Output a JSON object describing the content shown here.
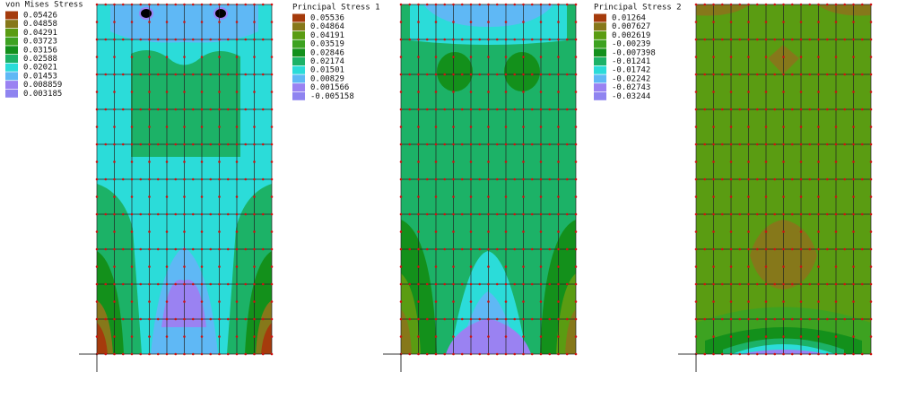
{
  "panels": [
    {
      "legend": {
        "title": "von Mises Stress",
        "items": [
          "0.05426",
          "0.04858",
          "0.04291",
          "0.03723",
          "0.03156",
          "0.02588",
          "0.02021",
          "0.01453",
          "0.008859",
          "0.003185"
        ]
      }
    },
    {
      "legend": {
        "title": "Principal Stress 1",
        "items": [
          "0.05536",
          "0.04864",
          "0.04191",
          "0.03519",
          "0.02846",
          "0.02174",
          "0.01501",
          "0.00829",
          "0.001566",
          "-0.005158"
        ]
      }
    },
    {
      "legend": {
        "title": "Principal Stress 2",
        "items": [
          "0.01264",
          "0.007627",
          "0.002619",
          "-0.00239",
          "-0.007398",
          "-0.01241",
          "-0.01742",
          "-0.02242",
          "-0.02743",
          "-0.03244"
        ]
      }
    }
  ],
  "colors": [
    "#a53b0c",
    "#86781a",
    "#5a9c12",
    "#3da221",
    "#13901b",
    "#1cb267",
    "#2bdcd9",
    "#5fb8f5",
    "#9a82f2",
    "#8f84f0"
  ]
}
